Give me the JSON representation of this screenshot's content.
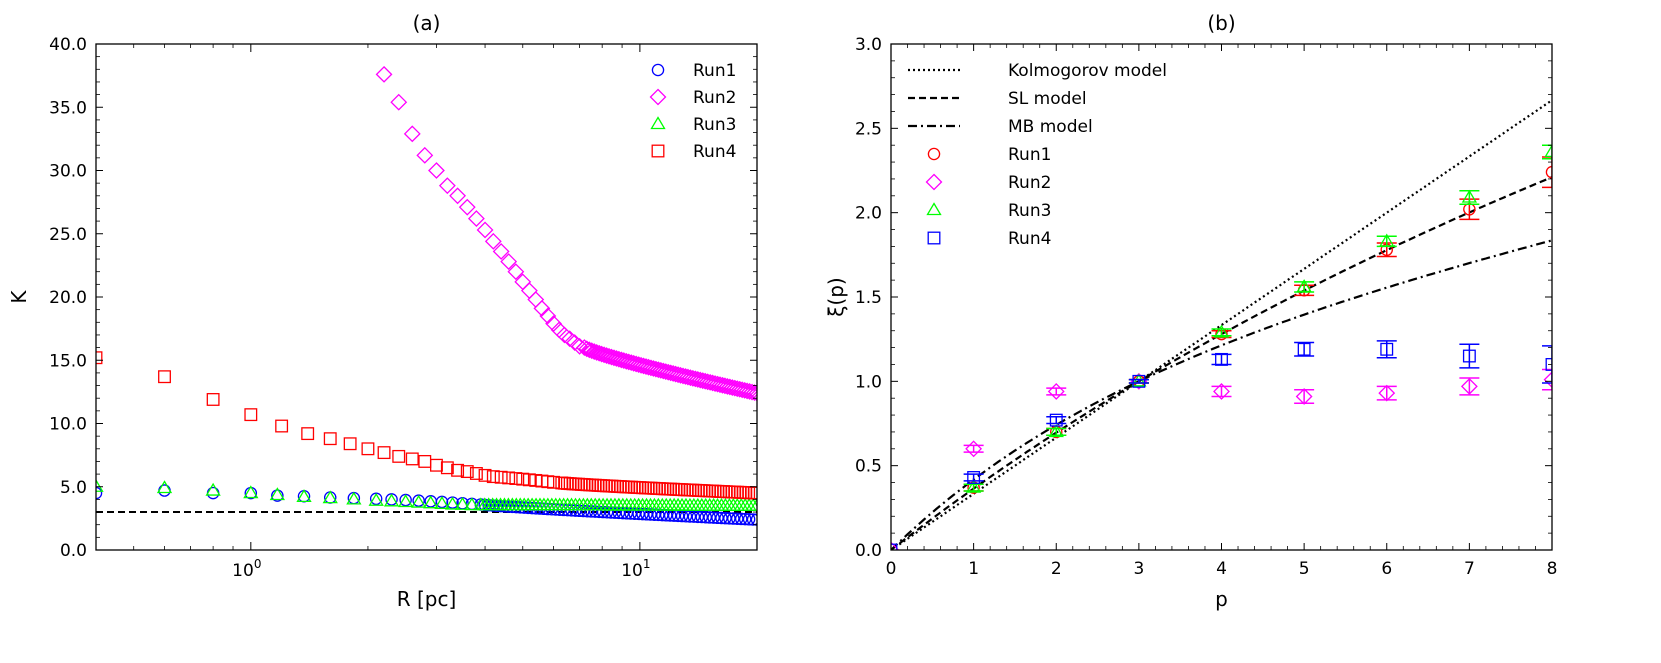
{
  "chart_data": [
    {
      "panel": "a",
      "type": "scatter",
      "title": "(a)",
      "xlabel": "R [pc]",
      "ylabel": "K",
      "xscale": "log",
      "xlim": [
        0.4,
        20
      ],
      "ylim": [
        0,
        40
      ],
      "xticks": [
        {
          "base": "10",
          "exp": "0",
          "value": 1
        },
        {
          "base": "10",
          "exp": "1",
          "value": 10
        }
      ],
      "yticks": [
        "0.0",
        "5.0",
        "10.0",
        "15.0",
        "20.0",
        "25.0",
        "30.0",
        "35.0",
        "40.0"
      ],
      "legend": "top-right",
      "reference_line": {
        "y": 3.0,
        "style": "dashed",
        "color": "#000000"
      },
      "series": [
        {
          "name": "Run1",
          "marker": "circle",
          "color": "#0000ff",
          "start": [
            [
              0.4,
              4.5
            ],
            [
              0.6,
              4.7
            ],
            [
              0.8,
              4.5
            ],
            [
              1.0,
              4.5
            ],
            [
              1.17,
              4.3
            ],
            [
              1.37,
              4.25
            ],
            [
              1.6,
              4.15
            ],
            [
              1.84,
              4.1
            ],
            [
              2.1,
              4.05
            ],
            [
              2.3,
              4.0
            ],
            [
              2.5,
              3.95
            ],
            [
              2.7,
              3.9
            ],
            [
              2.9,
              3.85
            ],
            [
              3.1,
              3.8
            ],
            [
              3.3,
              3.75
            ],
            [
              3.5,
              3.7
            ],
            [
              3.7,
              3.65
            ]
          ],
          "dense": {
            "from": 3.9,
            "to": 20,
            "y0": 3.6,
            "y1": 2.4
          }
        },
        {
          "name": "Run2",
          "marker": "diamond",
          "color": "#ff00ff",
          "start": [
            [
              2.2,
              37.6
            ],
            [
              2.4,
              35.4
            ],
            [
              2.6,
              32.9
            ],
            [
              2.8,
              31.2
            ],
            [
              3.0,
              30.0
            ],
            [
              3.2,
              28.8
            ],
            [
              3.4,
              28.0
            ],
            [
              3.6,
              27.1
            ],
            [
              3.8,
              26.2
            ],
            [
              4.0,
              25.3
            ],
            [
              4.2,
              24.4
            ],
            [
              4.4,
              23.6
            ],
            [
              4.6,
              22.8
            ],
            [
              4.8,
              22.0
            ],
            [
              5.0,
              21.2
            ],
            [
              5.2,
              20.5
            ],
            [
              5.4,
              19.8
            ],
            [
              5.6,
              19.1
            ],
            [
              5.8,
              18.5
            ],
            [
              6.0,
              17.9
            ],
            [
              6.2,
              17.4
            ],
            [
              6.4,
              17.0
            ],
            [
              6.6,
              16.7
            ],
            [
              6.8,
              16.4
            ],
            [
              7.0,
              16.1
            ]
          ],
          "dense": {
            "from": 7.2,
            "to": 20,
            "y0": 16.0,
            "y1": 12.4
          }
        },
        {
          "name": "Run3",
          "marker": "triangle",
          "color": "#00ff00",
          "start": [
            [
              0.4,
              5.0
            ],
            [
              0.6,
              4.9
            ],
            [
              0.8,
              4.7
            ],
            [
              1.0,
              4.5
            ],
            [
              1.17,
              4.35
            ],
            [
              1.37,
              4.2
            ],
            [
              1.6,
              4.1
            ],
            [
              1.84,
              4.0
            ],
            [
              2.1,
              3.9
            ],
            [
              2.3,
              3.85
            ],
            [
              2.5,
              3.8
            ],
            [
              2.7,
              3.75
            ],
            [
              2.9,
              3.7
            ],
            [
              3.1,
              3.65
            ],
            [
              3.3,
              3.6
            ],
            [
              3.5,
              3.58
            ],
            [
              3.7,
              3.55
            ]
          ],
          "dense": {
            "from": 3.9,
            "to": 20,
            "y0": 3.55,
            "y1": 3.5
          }
        },
        {
          "name": "Run4",
          "marker": "square",
          "color": "#ff0000",
          "start": [
            [
              0.4,
              15.2
            ],
            [
              0.6,
              13.7
            ],
            [
              0.8,
              11.9
            ],
            [
              1.0,
              10.7
            ],
            [
              1.2,
              9.8
            ],
            [
              1.4,
              9.2
            ],
            [
              1.6,
              8.8
            ],
            [
              1.8,
              8.4
            ],
            [
              2.0,
              8.0
            ],
            [
              2.2,
              7.7
            ],
            [
              2.4,
              7.4
            ],
            [
              2.6,
              7.2
            ],
            [
              2.8,
              7.0
            ],
            [
              3.0,
              6.7
            ],
            [
              3.2,
              6.5
            ],
            [
              3.4,
              6.3
            ],
            [
              3.6,
              6.2
            ],
            [
              3.8,
              6.05
            ],
            [
              4.0,
              5.9
            ],
            [
              4.2,
              5.8
            ],
            [
              4.4,
              5.75
            ],
            [
              4.6,
              5.7
            ],
            [
              4.8,
              5.65
            ],
            [
              5.0,
              5.6
            ],
            [
              5.2,
              5.55
            ],
            [
              5.4,
              5.5
            ],
            [
              5.6,
              5.45
            ],
            [
              5.8,
              5.4
            ],
            [
              6.0,
              5.35
            ]
          ],
          "dense": {
            "from": 6.3,
            "to": 20,
            "y0": 5.3,
            "y1": 4.5
          }
        }
      ]
    },
    {
      "panel": "b",
      "type": "scatter",
      "title": "(b)",
      "xlabel": "p",
      "ylabel": "ξ(p)",
      "xlim": [
        0,
        8
      ],
      "ylim": [
        0,
        3
      ],
      "xticks": [
        "0",
        "1",
        "2",
        "3",
        "4",
        "5",
        "6",
        "7",
        "8"
      ],
      "yticks": [
        "0.0",
        "0.5",
        "1.0",
        "1.5",
        "2.0",
        "2.5",
        "3.0"
      ],
      "legend": "top-left",
      "models": [
        {
          "name": "Kolmogorov model",
          "style": "dotted",
          "color": "#000000",
          "formula": "p/3"
        },
        {
          "name": "SL model",
          "style": "dashed",
          "color": "#000000",
          "formula": "p/9 + 2(1-(2/3)^(p/3))"
        },
        {
          "name": "MB model",
          "style": "dashdot",
          "color": "#000000",
          "formula": "p/9 + 1 - (1/3)^(p/3)"
        }
      ],
      "series": [
        {
          "name": "Run1",
          "marker": "circle",
          "color": "#ff0000",
          "x": [
            1,
            2,
            3,
            4,
            5,
            6,
            7,
            8
          ],
          "y": [
            0.37,
            0.7,
            1.0,
            1.28,
            1.54,
            1.78,
            2.02,
            2.24
          ],
          "err": [
            0.02,
            0.02,
            0.01,
            0.02,
            0.03,
            0.04,
            0.06,
            0.09
          ]
        },
        {
          "name": "Run2",
          "marker": "diamond",
          "color": "#ff00ff",
          "x": [
            1,
            2,
            3,
            4,
            5,
            6,
            7,
            8
          ],
          "y": [
            0.6,
            0.94,
            1.0,
            0.94,
            0.91,
            0.93,
            0.97,
            1.01
          ],
          "err": [
            0.02,
            0.02,
            0.01,
            0.03,
            0.04,
            0.04,
            0.05,
            0.06
          ]
        },
        {
          "name": "Run3",
          "marker": "triangle",
          "color": "#00ff00",
          "x": [
            1,
            2,
            3,
            4,
            5,
            6,
            7,
            8
          ],
          "y": [
            0.37,
            0.7,
            1.0,
            1.29,
            1.56,
            1.83,
            2.09,
            2.36
          ],
          "err": [
            0.02,
            0.02,
            0.01,
            0.02,
            0.03,
            0.03,
            0.04,
            0.04
          ]
        },
        {
          "name": "Run4",
          "marker": "square",
          "color": "#0000ff",
          "x": [
            1,
            2,
            3,
            4,
            5,
            6,
            7,
            8
          ],
          "y": [
            0.43,
            0.77,
            1.0,
            1.13,
            1.19,
            1.19,
            1.15,
            1.1
          ],
          "err": [
            0.02,
            0.02,
            0.01,
            0.03,
            0.04,
            0.05,
            0.07,
            0.11
          ]
        }
      ]
    }
  ]
}
